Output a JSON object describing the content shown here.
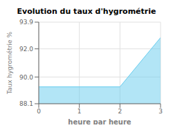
{
  "chart_data": {
    "type": "area",
    "title": "Evolution du taux d'hygrométrie",
    "x_label": "heure par heure",
    "y_label": "Taux hygrométrie %",
    "x": [
      0,
      2,
      3
    ],
    "values": [
      89.3,
      89.3,
      92.8
    ],
    "color": "#66ccee",
    "xlim": [
      0,
      3
    ],
    "ylim": [
      88.1,
      93.9
    ],
    "xticks": [
      0,
      1,
      2,
      3
    ],
    "yticks": [
      88.1,
      {
        "value": 90,
        "label": "90.0"
      },
      {
        "value": 92,
        "label": "92.0"
      },
      93.9
    ],
    "grid": true
  }
}
